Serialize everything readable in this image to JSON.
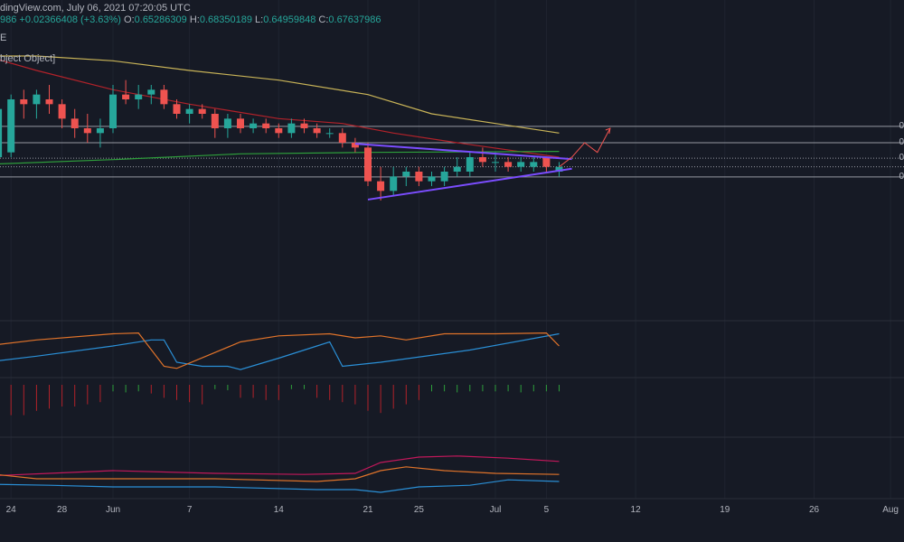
{
  "header": {
    "line1": "dingView.com, July 06, 2021 07:20:05 UTC",
    "change": "986  +0.02366408 (+3.63%)",
    "o_label": "O:",
    "o_value": "0.65286309",
    "h_label": "H:",
    "h_value": "0.68350189",
    "l_label": "L:",
    "l_value": "0.64959848",
    "c_label": "C:",
    "c_value": "0.67637986",
    "line3": "E",
    "object_text": "bject Object]"
  },
  "level_labels": [
    "0",
    "0",
    "0",
    "0"
  ],
  "colors": {
    "background": "#161a25",
    "up": "#26a69a",
    "down": "#ef5350",
    "ma_long": "#c9b458",
    "ma_short": "#b2222a",
    "ma_green": "#2e9e3b",
    "trendline": "#7b4dff",
    "osc_blue": "#2a8fd6",
    "osc_orange": "#e0732a",
    "rsi_pink": "#c2185b"
  },
  "chart_data": {
    "type": "candlestick",
    "x_ticks": [
      "24",
      "28",
      "Jun",
      "7",
      "14",
      "21",
      "25",
      "Jul",
      "5",
      "12",
      "19",
      "26",
      "Aug"
    ],
    "x_tick_days": [
      -8,
      -4,
      0,
      6,
      13,
      20,
      24,
      30,
      34,
      41,
      48,
      55,
      61
    ],
    "price_range": [
      0.45,
      1.05
    ],
    "candles": [
      {
        "d": -10,
        "o": 0.8,
        "h": 0.86,
        "l": 0.77,
        "c": 0.78
      },
      {
        "d": -9,
        "o": 0.78,
        "h": 0.9,
        "l": 0.76,
        "c": 0.88
      },
      {
        "d": -8,
        "o": 0.79,
        "h": 0.91,
        "l": 0.78,
        "c": 0.9
      },
      {
        "d": -7,
        "o": 0.9,
        "h": 0.92,
        "l": 0.86,
        "c": 0.89
      },
      {
        "d": -6,
        "o": 0.89,
        "h": 0.92,
        "l": 0.86,
        "c": 0.91
      },
      {
        "d": -5,
        "o": 0.9,
        "h": 0.93,
        "l": 0.87,
        "c": 0.89
      },
      {
        "d": -4,
        "o": 0.89,
        "h": 0.9,
        "l": 0.84,
        "c": 0.86
      },
      {
        "d": -3,
        "o": 0.86,
        "h": 0.88,
        "l": 0.82,
        "c": 0.84
      },
      {
        "d": -2,
        "o": 0.84,
        "h": 0.87,
        "l": 0.81,
        "c": 0.83
      },
      {
        "d": -1,
        "o": 0.83,
        "h": 0.86,
        "l": 0.8,
        "c": 0.84
      },
      {
        "d": 0,
        "o": 0.84,
        "h": 0.93,
        "l": 0.83,
        "c": 0.91
      },
      {
        "d": 1,
        "o": 0.91,
        "h": 0.94,
        "l": 0.89,
        "c": 0.9
      },
      {
        "d": 2,
        "o": 0.9,
        "h": 0.93,
        "l": 0.88,
        "c": 0.91
      },
      {
        "d": 3,
        "o": 0.91,
        "h": 0.93,
        "l": 0.89,
        "c": 0.92
      },
      {
        "d": 4,
        "o": 0.92,
        "h": 0.93,
        "l": 0.88,
        "c": 0.89
      },
      {
        "d": 5,
        "o": 0.89,
        "h": 0.9,
        "l": 0.86,
        "c": 0.87
      },
      {
        "d": 6,
        "o": 0.87,
        "h": 0.89,
        "l": 0.85,
        "c": 0.88
      },
      {
        "d": 7,
        "o": 0.88,
        "h": 0.89,
        "l": 0.86,
        "c": 0.87
      },
      {
        "d": 8,
        "o": 0.87,
        "h": 0.88,
        "l": 0.82,
        "c": 0.84
      },
      {
        "d": 9,
        "o": 0.84,
        "h": 0.87,
        "l": 0.82,
        "c": 0.86
      },
      {
        "d": 10,
        "o": 0.86,
        "h": 0.87,
        "l": 0.83,
        "c": 0.84
      },
      {
        "d": 11,
        "o": 0.84,
        "h": 0.86,
        "l": 0.83,
        "c": 0.85
      },
      {
        "d": 12,
        "o": 0.85,
        "h": 0.86,
        "l": 0.83,
        "c": 0.84
      },
      {
        "d": 13,
        "o": 0.84,
        "h": 0.85,
        "l": 0.82,
        "c": 0.83
      },
      {
        "d": 14,
        "o": 0.83,
        "h": 0.86,
        "l": 0.82,
        "c": 0.85
      },
      {
        "d": 15,
        "o": 0.85,
        "h": 0.86,
        "l": 0.83,
        "c": 0.84
      },
      {
        "d": 16,
        "o": 0.84,
        "h": 0.85,
        "l": 0.82,
        "c": 0.83
      },
      {
        "d": 17,
        "o": 0.83,
        "h": 0.84,
        "l": 0.82,
        "c": 0.83
      },
      {
        "d": 18,
        "o": 0.83,
        "h": 0.84,
        "l": 0.8,
        "c": 0.81
      },
      {
        "d": 19,
        "o": 0.81,
        "h": 0.82,
        "l": 0.79,
        "c": 0.8
      },
      {
        "d": 20,
        "o": 0.8,
        "h": 0.81,
        "l": 0.72,
        "c": 0.73
      },
      {
        "d": 21,
        "o": 0.73,
        "h": 0.76,
        "l": 0.69,
        "c": 0.71
      },
      {
        "d": 22,
        "o": 0.71,
        "h": 0.76,
        "l": 0.7,
        "c": 0.74
      },
      {
        "d": 23,
        "o": 0.74,
        "h": 0.76,
        "l": 0.72,
        "c": 0.75
      },
      {
        "d": 24,
        "o": 0.75,
        "h": 0.76,
        "l": 0.72,
        "c": 0.73
      },
      {
        "d": 25,
        "o": 0.73,
        "h": 0.75,
        "l": 0.72,
        "c": 0.74
      },
      {
        "d": 26,
        "o": 0.73,
        "h": 0.76,
        "l": 0.72,
        "c": 0.75
      },
      {
        "d": 27,
        "o": 0.75,
        "h": 0.78,
        "l": 0.74,
        "c": 0.76
      },
      {
        "d": 28,
        "o": 0.75,
        "h": 0.79,
        "l": 0.74,
        "c": 0.78
      },
      {
        "d": 29,
        "o": 0.78,
        "h": 0.8,
        "l": 0.76,
        "c": 0.77
      },
      {
        "d": 30,
        "o": 0.77,
        "h": 0.79,
        "l": 0.75,
        "c": 0.77
      },
      {
        "d": 31,
        "o": 0.77,
        "h": 0.78,
        "l": 0.75,
        "c": 0.76
      },
      {
        "d": 32,
        "o": 0.76,
        "h": 0.78,
        "l": 0.75,
        "c": 0.77
      },
      {
        "d": 33,
        "o": 0.76,
        "h": 0.78,
        "l": 0.75,
        "c": 0.77
      },
      {
        "d": 34,
        "o": 0.78,
        "h": 0.78,
        "l": 0.75,
        "c": 0.76
      },
      {
        "d": 35,
        "o": 0.75,
        "h": 0.77,
        "l": 0.74,
        "c": 0.76
      }
    ],
    "ma_long": [
      [
        -10,
        0.99
      ],
      [
        -6,
        0.99
      ],
      [
        0,
        0.98
      ],
      [
        6,
        0.96
      ],
      [
        13,
        0.94
      ],
      [
        20,
        0.91
      ],
      [
        25,
        0.87
      ],
      [
        30,
        0.85
      ],
      [
        35,
        0.83
      ]
    ],
    "ma_short": [
      [
        -10,
        0.99
      ],
      [
        -6,
        0.96
      ],
      [
        0,
        0.92
      ],
      [
        6,
        0.89
      ],
      [
        13,
        0.86
      ],
      [
        18,
        0.85
      ],
      [
        22,
        0.83
      ],
      [
        27,
        0.81
      ],
      [
        35,
        0.78
      ]
    ],
    "ma_green": [
      [
        -10,
        0.765
      ],
      [
        0,
        0.775
      ],
      [
        10,
        0.787
      ],
      [
        20,
        0.79
      ],
      [
        35,
        0.792
      ]
    ],
    "trendlines": [
      {
        "from": [
          19,
          0.808
        ],
        "to": [
          36,
          0.776
        ]
      },
      {
        "from": [
          20,
          0.692
        ],
        "to": [
          36,
          0.756
        ]
      }
    ],
    "projection": [
      [
        35,
        0.76
      ],
      [
        36,
        0.78
      ],
      [
        37,
        0.81
      ],
      [
        38,
        0.79
      ],
      [
        39,
        0.84
      ]
    ],
    "levels": [
      0.844,
      0.81,
      0.778,
      0.76,
      0.739
    ],
    "osc_blue": [
      [
        -10,
        0.2
      ],
      [
        -6,
        0.35
      ],
      [
        0,
        0.6
      ],
      [
        3,
        0.75
      ],
      [
        4,
        0.75
      ],
      [
        5,
        0.2
      ],
      [
        7,
        0.1
      ],
      [
        9,
        0.1
      ],
      [
        10,
        0.02
      ],
      [
        13,
        0.3
      ],
      [
        16,
        0.6
      ],
      [
        17,
        0.7
      ],
      [
        18,
        0.1
      ],
      [
        21,
        0.2
      ],
      [
        28,
        0.5
      ],
      [
        35,
        0.9
      ]
    ],
    "osc_orange": [
      [
        -10,
        0.6
      ],
      [
        -6,
        0.75
      ],
      [
        0,
        0.9
      ],
      [
        2,
        0.92
      ],
      [
        4,
        0.1
      ],
      [
        5,
        0.05
      ],
      [
        10,
        0.7
      ],
      [
        13,
        0.85
      ],
      [
        17,
        0.9
      ],
      [
        19,
        0.8
      ],
      [
        21,
        0.85
      ],
      [
        23,
        0.75
      ],
      [
        26,
        0.9
      ],
      [
        30,
        0.9
      ],
      [
        34,
        0.92
      ],
      [
        35,
        0.6
      ]
    ],
    "histogram": [
      -0.9,
      -0.8,
      -0.7,
      -0.7,
      -0.6,
      -0.55,
      -0.5,
      -0.5,
      -0.45,
      -0.4,
      0.3,
      0.35,
      0.3,
      -0.2,
      -0.3,
      -0.35,
      -0.4,
      -0.45,
      0.2,
      0.25,
      -0.3,
      -0.3,
      -0.35,
      -0.35,
      0.2,
      0.2,
      -0.3,
      -0.35,
      -0.4,
      -0.45,
      -0.6,
      -0.65,
      -0.55,
      -0.45,
      -0.35,
      0.3,
      0.3,
      0.35,
      0.3,
      0.3,
      0.3,
      0.3,
      0.35,
      0.3,
      0.3,
      0.3
    ],
    "rsi_pink": [
      [
        -10,
        0.35
      ],
      [
        -5,
        0.4
      ],
      [
        0,
        0.45
      ],
      [
        8,
        0.4
      ],
      [
        15,
        0.38
      ],
      [
        19,
        0.4
      ],
      [
        21,
        0.6
      ],
      [
        24,
        0.7
      ],
      [
        27,
        0.72
      ],
      [
        31,
        0.68
      ],
      [
        35,
        0.62
      ]
    ],
    "rsi_orange": [
      [
        -10,
        0.4
      ],
      [
        -6,
        0.3
      ],
      [
        0,
        0.3
      ],
      [
        8,
        0.3
      ],
      [
        16,
        0.25
      ],
      [
        19,
        0.3
      ],
      [
        21,
        0.45
      ],
      [
        23,
        0.52
      ],
      [
        26,
        0.45
      ],
      [
        30,
        0.4
      ],
      [
        35,
        0.38
      ]
    ],
    "rsi_blue": [
      [
        -10,
        0.2
      ],
      [
        -5,
        0.18
      ],
      [
        0,
        0.15
      ],
      [
        8,
        0.15
      ],
      [
        16,
        0.1
      ],
      [
        19,
        0.1
      ],
      [
        21,
        0.05
      ],
      [
        24,
        0.15
      ],
      [
        28,
        0.18
      ],
      [
        31,
        0.28
      ],
      [
        35,
        0.25
      ]
    ]
  }
}
